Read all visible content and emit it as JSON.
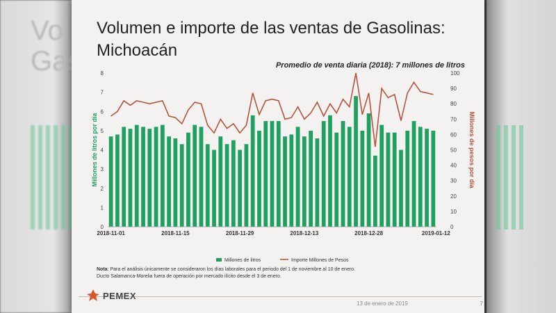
{
  "slide": {
    "title": "Volumen e importe de las ventas de Gasolinas: Michoacán",
    "subtitle": "Promedio de venta diaria (2018): 7 millones de litros",
    "note_label": "Nota",
    "note_line1": ": Para el análisis únicamente se consideraron los días laborales para el periodo del 1 de noviembre al 10 de enero.",
    "note_line2": "Ducto Salamanca-Morelia fuera de operación por mercado ilícito desde el 3 de enero.",
    "logo_text": "PEMEX",
    "date": "13 de enero de 2019",
    "page_number": "7"
  },
  "background": {
    "left_ghost_title": "Vol\nGas"
  },
  "colors": {
    "bars": "#20a060",
    "line": "#b5533c",
    "axis_text": "#444444",
    "left_axis_label": "#20a060",
    "right_axis_label": "#b5533c"
  },
  "chart_data": {
    "type": "bar",
    "title": "",
    "ylabel": "Millones de litros por día",
    "y2label": "Millones de pesos por día",
    "ylim": [
      0,
      8
    ],
    "y2lim": [
      0,
      100
    ],
    "yticks": [
      0,
      1,
      2,
      3,
      4,
      5,
      6,
      7,
      8
    ],
    "y2ticks": [
      0,
      10,
      20,
      30,
      40,
      50,
      60,
      70,
      80,
      90,
      100
    ],
    "x_tick_labels": [
      "2018-11-01",
      "2018-11-15",
      "2018-11-29",
      "2018-12-13",
      "2018-12-28",
      "2019-01-12"
    ],
    "x_tick_positions": [
      0,
      10,
      20,
      30,
      40,
      50
    ],
    "legend": [
      "Millones de litros",
      "Importe Millones de Pesos"
    ],
    "legend_position": "bottom",
    "series": [
      {
        "name": "Millones de litros",
        "type": "bar",
        "axis": "left",
        "values": [
          4.7,
          4.8,
          5.2,
          5.1,
          5.3,
          5.2,
          5.1,
          5.2,
          5.3,
          4.7,
          4.6,
          4.3,
          4.9,
          5.3,
          5.2,
          4.3,
          4.0,
          4.7,
          4.3,
          4.5,
          4.0,
          4.3,
          5.8,
          5.0,
          5.5,
          5.5,
          5.5,
          4.7,
          4.8,
          5.2,
          4.7,
          5.0,
          4.6,
          5.5,
          5.8,
          4.9,
          5.5,
          5.2,
          6.8,
          5.0,
          5.9,
          3.7,
          5.3,
          4.9,
          4.9,
          4.0,
          5.0,
          5.5,
          5.2,
          5.1,
          5.0
        ]
      },
      {
        "name": "Importe Millones de Pesos",
        "type": "line",
        "axis": "right",
        "values": [
          72,
          75,
          82,
          79,
          82,
          81,
          80,
          81,
          82,
          72,
          71,
          67,
          76,
          81,
          80,
          66,
          61,
          70,
          64,
          67,
          61,
          66,
          87,
          73,
          82,
          83,
          82,
          70,
          71,
          78,
          70,
          74,
          81,
          72,
          80,
          74,
          83,
          78,
          100,
          73,
          87,
          52,
          90,
          84,
          86,
          69,
          87,
          94,
          88,
          87,
          86
        ]
      }
    ]
  }
}
